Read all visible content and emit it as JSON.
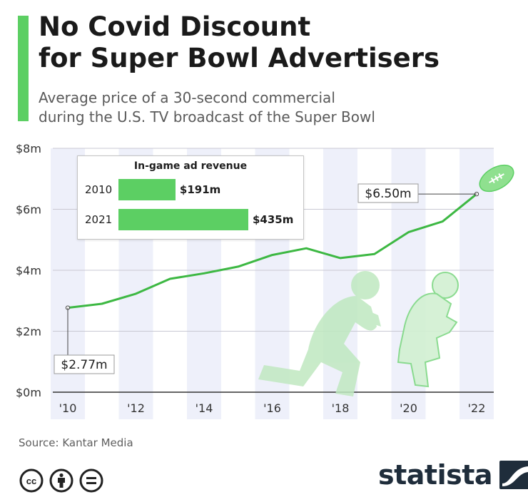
{
  "header": {
    "title_line1": "No Covid Discount",
    "title_line2": "for Super Bowl Advertisers",
    "subtitle_line1": "Average price of a 30-second commercial",
    "subtitle_line2": "during the U.S. TV broadcast of the Super Bowl",
    "accent_color": "#5ccf63"
  },
  "chart_data": {
    "type": "line",
    "x": [
      2010,
      2011,
      2012,
      2013,
      2014,
      2015,
      2016,
      2017,
      2018,
      2019,
      2020,
      2021,
      2022
    ],
    "series": [
      {
        "values": [
          2.77,
          2.9,
          3.23,
          3.72,
          3.9,
          4.12,
          4.5,
          4.72,
          4.4,
          4.53,
          5.25,
          5.6,
          6.5
        ]
      }
    ],
    "y_ticks": [
      "$0m",
      "$2m",
      "$4m",
      "$6m",
      "$8m"
    ],
    "ylim": [
      0,
      8
    ],
    "x_ticks": [
      "'10",
      "'12",
      "'14",
      "'16",
      "'18",
      "'20",
      "'22"
    ],
    "annotations": [
      {
        "x": 2010,
        "y": 2.77,
        "label": "$2.77m"
      },
      {
        "x": 2022,
        "y": 6.5,
        "label": "$6.50m"
      }
    ],
    "line_color": "#3db843",
    "grid": true
  },
  "inset": {
    "title": "In-game ad revenue",
    "rows": [
      {
        "year": "2010",
        "label": "$191m",
        "value": 191
      },
      {
        "year": "2021",
        "label": "$435m",
        "value": 435
      }
    ],
    "max_value": 435,
    "bar_color": "#5ccf63"
  },
  "footer": {
    "source": "Source: Kantar Media",
    "brand": "statista",
    "license_icons": [
      "cc-icon",
      "attribution-icon",
      "no-derivatives-icon"
    ]
  }
}
